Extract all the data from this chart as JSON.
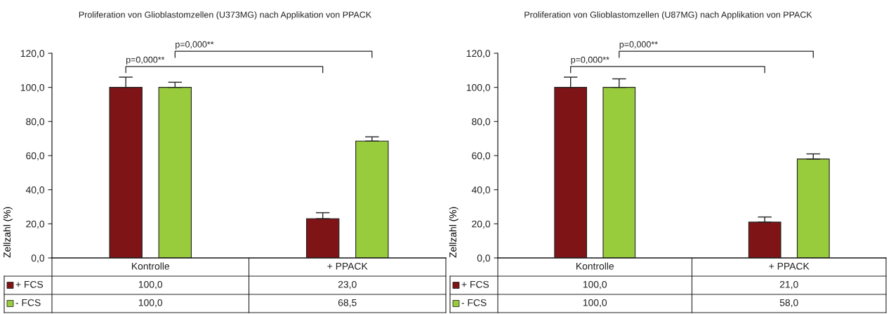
{
  "chart_data": [
    {
      "type": "bar",
      "title": "Proliferation von Glioblastomzellen (U373MG) nach Applikation von PPACK",
      "ylabel": "Zellzahl (%)",
      "categories": [
        "Kontrolle",
        "+ PPACK"
      ],
      "series": [
        {
          "name": "+ FCS",
          "color": "#7f1416",
          "values": [
            100.0,
            23.0
          ],
          "value_labels": [
            "100,0",
            "23,0"
          ],
          "errors": [
            [
              100,
              106
            ],
            [
              23,
              26.5
            ]
          ]
        },
        {
          "name": "- FCS",
          "color": "#99cc3c",
          "values": [
            100.0,
            68.5
          ],
          "value_labels": [
            "100,0",
            "68,5"
          ],
          "errors": [
            [
              100,
              103
            ],
            [
              68.5,
              71
            ]
          ]
        }
      ],
      "ylim": [
        0,
        120
      ],
      "yticks": [
        {
          "value": 0,
          "label": "0,0"
        },
        {
          "value": 20,
          "label": "20,0"
        },
        {
          "value": 40,
          "label": "40,0"
        },
        {
          "value": 60,
          "label": "60,0"
        },
        {
          "value": 80,
          "label": "80,0"
        },
        {
          "value": 100,
          "label": "100,0"
        },
        {
          "value": 120,
          "label": "120,0"
        }
      ],
      "annotations": [
        "p=0,000**",
        "p=0,000**"
      ],
      "legend": "bottom left",
      "grid": false
    },
    {
      "type": "bar",
      "title": "Proliferation von Glioblastomzellen (U87MG) nach Applikation von PPACK",
      "ylabel": "Zellzahl (%)",
      "categories": [
        "Kontrolle",
        "+ PPACK"
      ],
      "series": [
        {
          "name": "+ FCS",
          "color": "#7f1416",
          "values": [
            100.0,
            21.0
          ],
          "value_labels": [
            "100,0",
            "21,0"
          ],
          "errors": [
            [
              100,
              106
            ],
            [
              21,
              24
            ]
          ]
        },
        {
          "name": "- FCS",
          "color": "#99cc3c",
          "values": [
            100.0,
            58.0
          ],
          "value_labels": [
            "100,0",
            "58,0"
          ],
          "errors": [
            [
              100,
              105
            ],
            [
              58,
              61
            ]
          ]
        }
      ],
      "ylim": [
        0,
        120
      ],
      "yticks": [
        {
          "value": 0,
          "label": "0,0"
        },
        {
          "value": 20,
          "label": "20,0"
        },
        {
          "value": 40,
          "label": "40,0"
        },
        {
          "value": 60,
          "label": "60,0"
        },
        {
          "value": 80,
          "label": "80,0"
        },
        {
          "value": 100,
          "label": "100,0"
        },
        {
          "value": 120,
          "label": "120,0"
        }
      ],
      "annotations": [
        "p=0,000**",
        "p=0,000**"
      ],
      "legend": "bottom left",
      "grid": false
    }
  ]
}
